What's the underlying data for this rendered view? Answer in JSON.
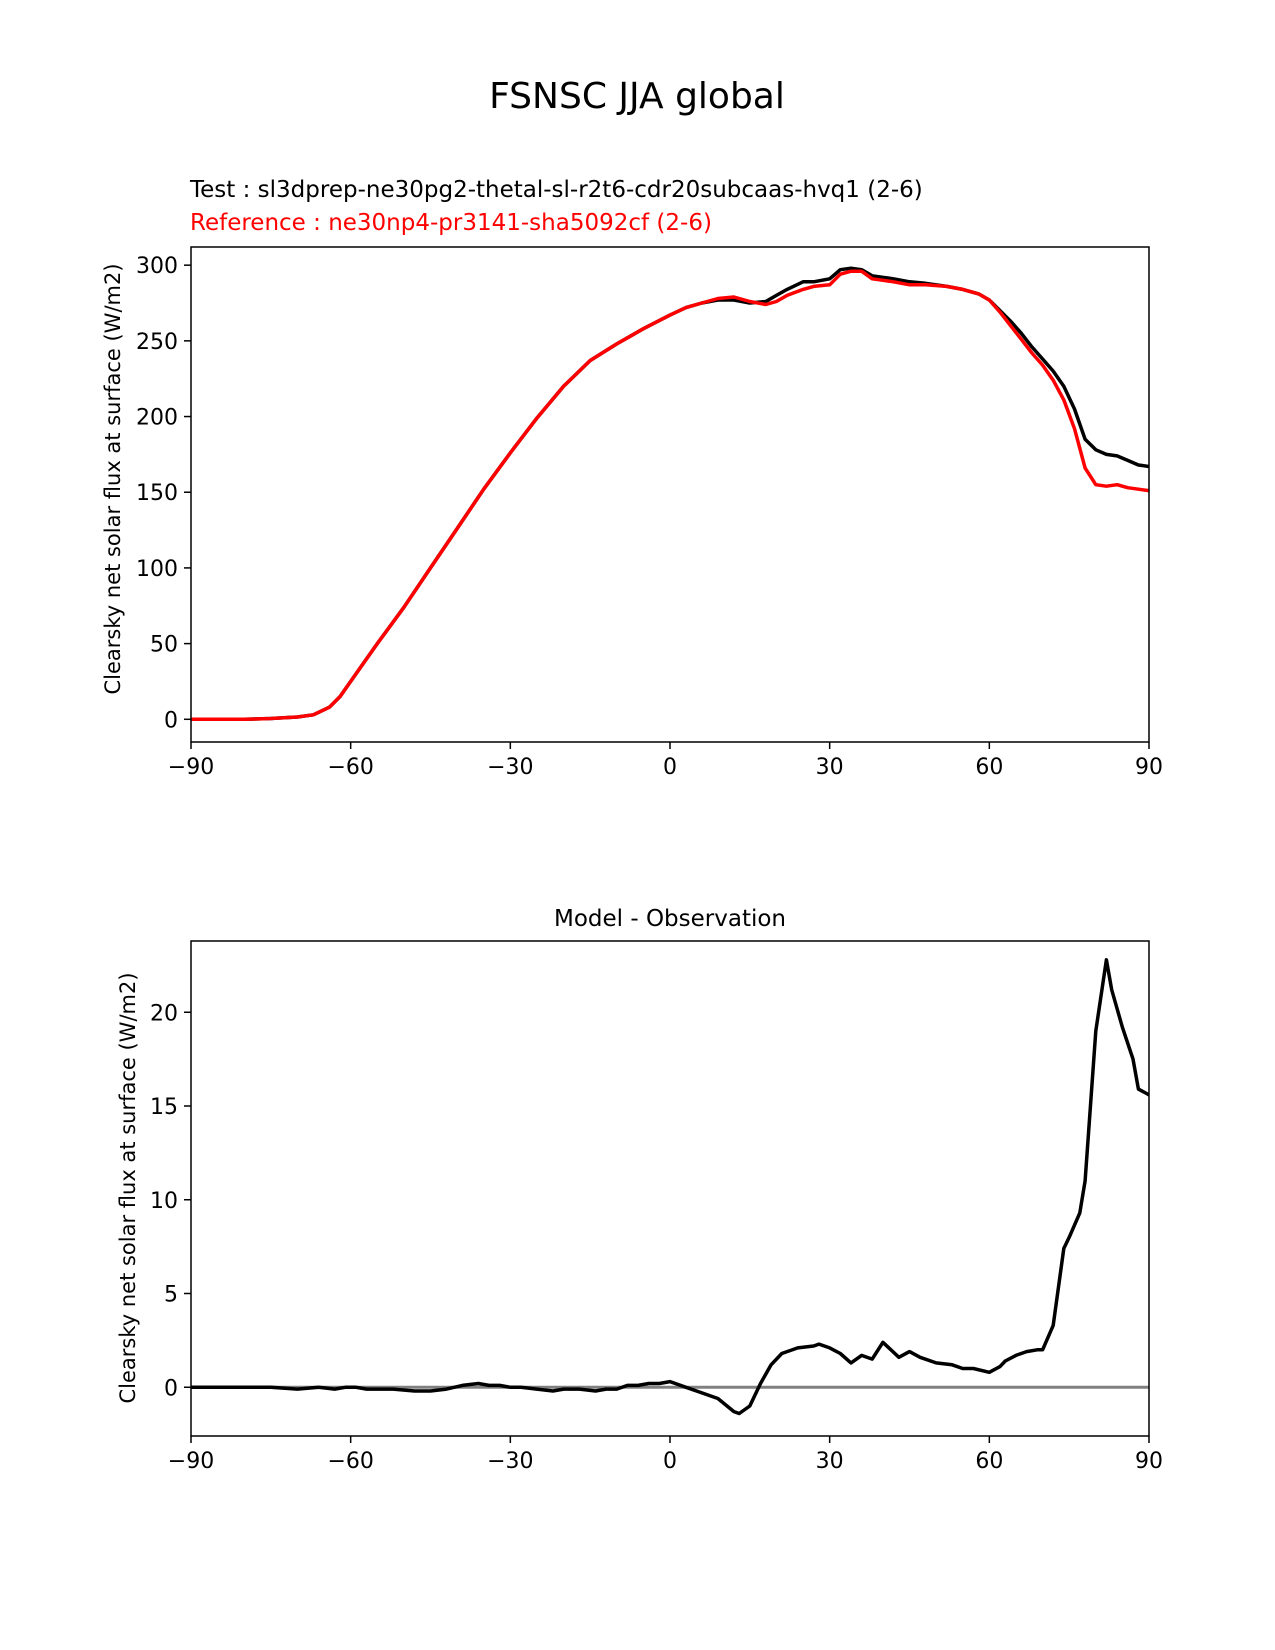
{
  "figure": {
    "title": "FSNSC JJA global"
  },
  "chart_data": [
    {
      "type": "line",
      "test_label": "Test : sl3dprep-ne30pg2-thetal-sl-r2t6-cdr20subcaas-hvq1 (2-6)",
      "reference_label": "Reference : ne30np4-pr3141-sha5092cf (2-6)",
      "title": "",
      "xlabel": "",
      "ylabel": "Clearsky net solar flux at surface (W/m2)",
      "xlim": [
        -90,
        90
      ],
      "ylim": [
        -15,
        312
      ],
      "xticks": [
        -90,
        -60,
        -30,
        0,
        30,
        60,
        90
      ],
      "xtick_labels": [
        "−90",
        "−60",
        "−30",
        "0",
        "30",
        "60",
        "90"
      ],
      "yticks": [
        0,
        50,
        100,
        150,
        200,
        250,
        300
      ],
      "ytick_labels": [
        "0",
        "50",
        "100",
        "150",
        "200",
        "250",
        "300"
      ],
      "grid": false,
      "series": [
        {
          "color": "#000000",
          "x": [
            -90,
            -80,
            -75,
            -70,
            -67,
            -64,
            -62,
            -60,
            -57,
            -55,
            -50,
            -45,
            -40,
            -35,
            -30,
            -25,
            -20,
            -15,
            -10,
            -5,
            0,
            3,
            6,
            9,
            12,
            15,
            18,
            20,
            22,
            25,
            27,
            30,
            32,
            34,
            36,
            38,
            40,
            42,
            45,
            48,
            52,
            55,
            58,
            60,
            62,
            64,
            66,
            68,
            70,
            72,
            74,
            76,
            78,
            80,
            82,
            84,
            86,
            88,
            90
          ],
          "y": [
            0,
            0,
            0.5,
            1.5,
            3,
            8,
            15,
            25,
            40,
            50,
            74,
            100,
            126,
            152,
            176,
            199,
            220,
            237,
            248,
            258,
            267,
            272,
            275,
            277,
            277,
            275,
            276,
            280,
            284,
            289,
            289,
            291,
            297,
            298,
            297,
            293,
            292,
            291,
            289,
            288,
            286,
            284,
            281,
            277,
            270,
            263,
            255,
            246,
            238,
            230,
            220,
            205,
            185,
            178,
            175,
            174,
            171,
            168,
            167
          ]
        },
        {
          "color": "#ff0000",
          "x": [
            -90,
            -80,
            -75,
            -70,
            -67,
            -64,
            -62,
            -60,
            -57,
            -55,
            -50,
            -45,
            -40,
            -35,
            -30,
            -25,
            -20,
            -15,
            -10,
            -5,
            0,
            3,
            6,
            9,
            12,
            15,
            18,
            20,
            22,
            25,
            27,
            30,
            32,
            34,
            36,
            38,
            40,
            42,
            45,
            48,
            52,
            55,
            58,
            60,
            62,
            64,
            66,
            68,
            70,
            72,
            74,
            76,
            78,
            80,
            82,
            84,
            86,
            88,
            90
          ],
          "y": [
            0,
            0,
            0.5,
            1.5,
            3,
            8,
            15,
            25,
            40,
            50,
            74,
            100,
            126,
            152,
            176,
            199,
            220,
            237,
            248,
            258,
            267,
            272,
            275,
            278,
            279,
            276,
            274,
            276,
            280,
            284,
            286,
            287,
            294,
            296,
            296,
            291,
            290,
            289,
            287,
            287,
            286,
            284,
            281,
            277,
            269,
            260,
            251,
            242,
            234,
            224,
            211,
            192,
            166,
            155,
            154,
            155,
            153,
            152,
            151
          ]
        }
      ]
    },
    {
      "type": "line",
      "title": "Model - Observation",
      "xlabel": "",
      "ylabel": "Clearsky net solar flux at surface (W/m2)",
      "xlim": [
        -90,
        90
      ],
      "ylim": [
        -2.6,
        23.8
      ],
      "xticks": [
        -90,
        -60,
        -30,
        0,
        30,
        60,
        90
      ],
      "xtick_labels": [
        "−90",
        "−60",
        "−30",
        "0",
        "30",
        "60",
        "90"
      ],
      "yticks": [
        0,
        5,
        10,
        15,
        20
      ],
      "ytick_labels": [
        "0",
        "5",
        "10",
        "15",
        "20"
      ],
      "grid": false,
      "zero_line_color": "#808080",
      "series": [
        {
          "color": "#000000",
          "x": [
            -90,
            -75,
            -70,
            -66,
            -63,
            -61,
            -59,
            -57,
            -55,
            -52,
            -48,
            -45,
            -42,
            -39,
            -36,
            -34,
            -32,
            -30,
            -28,
            -25,
            -22,
            -20,
            -17,
            -14,
            -12,
            -10,
            -8,
            -6,
            -4,
            -2,
            0,
            1,
            3,
            6,
            9,
            12,
            13,
            15,
            17,
            19,
            21,
            24,
            27,
            28,
            30,
            32,
            34,
            36,
            38,
            40,
            43,
            45,
            47,
            50,
            53,
            55,
            57,
            60,
            62,
            63,
            65,
            67,
            69,
            70,
            72,
            74,
            75,
            77,
            78,
            80,
            82,
            83,
            85,
            87,
            88,
            90
          ],
          "y": [
            0,
            0,
            -0.1,
            0,
            -0.1,
            0,
            0,
            -0.1,
            -0.1,
            -0.1,
            -0.2,
            -0.2,
            -0.1,
            0.1,
            0.2,
            0.1,
            0.1,
            0,
            0,
            -0.1,
            -0.2,
            -0.1,
            -0.1,
            -0.2,
            -0.1,
            -0.1,
            0.1,
            0.1,
            0.2,
            0.2,
            0.3,
            0.2,
            0,
            -0.3,
            -0.6,
            -1.3,
            -1.4,
            -1,
            0.2,
            1.2,
            1.8,
            2.1,
            2.2,
            2.3,
            2.1,
            1.8,
            1.3,
            1.7,
            1.5,
            2.4,
            1.6,
            1.9,
            1.6,
            1.3,
            1.2,
            1,
            1,
            0.8,
            1.1,
            1.4,
            1.7,
            1.9,
            2,
            2,
            3.3,
            7.4,
            8,
            9.3,
            11,
            19,
            22.8,
            21.2,
            19.2,
            17.5,
            15.9,
            15.6
          ]
        }
      ]
    }
  ]
}
